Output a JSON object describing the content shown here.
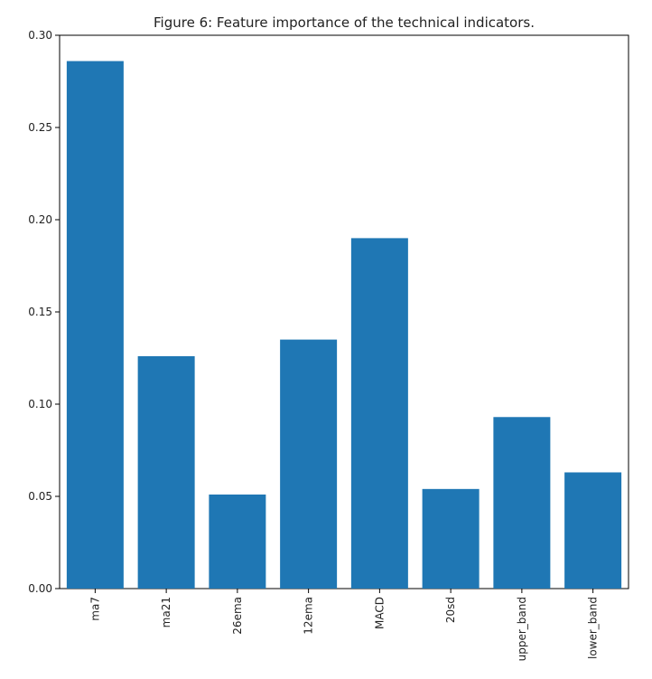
{
  "chart_data": {
    "type": "bar",
    "title": "Figure 6: Feature importance of the technical indicators.",
    "xlabel": "",
    "ylabel": "",
    "categories": [
      "ma7",
      "ma21",
      "26ema",
      "12ema",
      "MACD",
      "20sd",
      "upper_band",
      "lower_band"
    ],
    "values": [
      0.286,
      0.126,
      0.051,
      0.135,
      0.19,
      0.054,
      0.093,
      0.063
    ],
    "ylim": [
      0.0,
      0.3
    ],
    "yticks": [
      0.0,
      0.05,
      0.1,
      0.15,
      0.2,
      0.25,
      0.3
    ],
    "ytick_labels": [
      "0.00",
      "0.05",
      "0.10",
      "0.15",
      "0.20",
      "0.25",
      "0.30"
    ],
    "xtick_rotation": "vertical",
    "grid": false,
    "legend": "none",
    "bar_color": "#1f77b4"
  }
}
